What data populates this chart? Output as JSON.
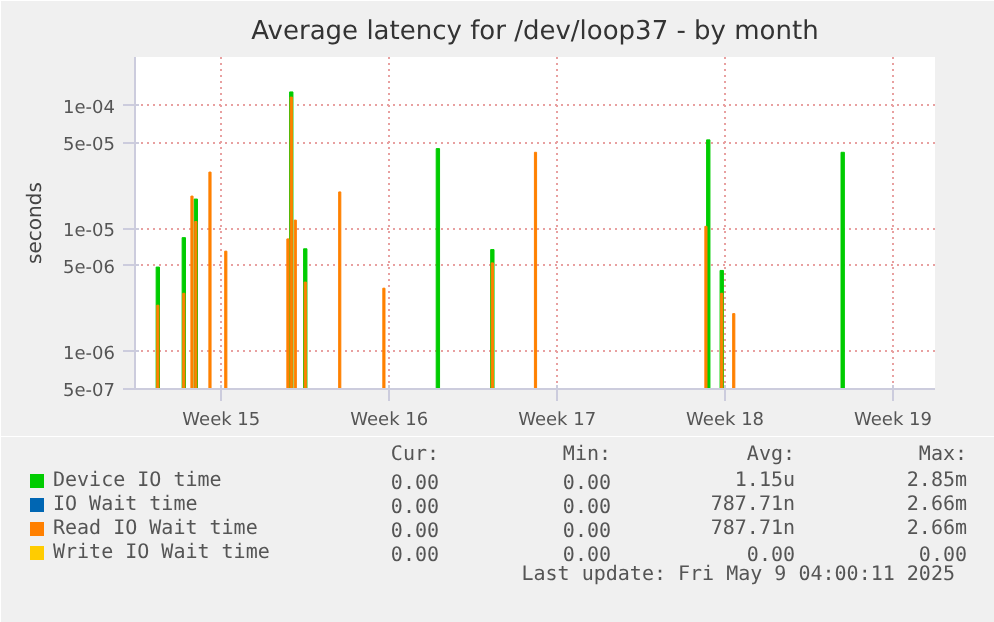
{
  "chart_data": {
    "type": "bar",
    "title": "Average latency for /dev/loop37 - by month",
    "ylabel": "seconds",
    "x": [
      "2025-04-07T20:30",
      "2025-04-08T22:30",
      "2025-04-09T06:40",
      "2025-04-09T10:30",
      "2025-04-10T00:40",
      "2025-04-10T16:30",
      "2025-04-13T06:40",
      "2025-04-13T10:00",
      "2025-04-13T14:00",
      "2025-04-14T00:00",
      "2025-04-15T10:30",
      "2025-04-17T06:40",
      "2025-04-19T12:40",
      "2025-04-21T19:10",
      "2025-04-23T14:20",
      "2025-04-30T16:50",
      "2025-04-30T19:10",
      "2025-05-01T08:40",
      "2025-05-01T20:40",
      "2025-05-06T09:40"
    ],
    "series": [
      {
        "name": "Device IO time",
        "color": "#00cc00",
        "values": [
          4.9e-06,
          8.5e-06,
          null,
          1.75e-05,
          null,
          null,
          null,
          0.00013,
          null,
          6.9e-06,
          null,
          null,
          4.5e-05,
          6.8e-06,
          null,
          null,
          5.3e-05,
          4.6e-06,
          null,
          4.2e-05
        ]
      },
      {
        "name": "IO Wait time",
        "color": "#0066b3",
        "values": [
          null,
          null,
          null,
          null,
          null,
          null,
          null,
          null,
          null,
          null,
          null,
          null,
          null,
          null,
          null,
          null,
          null,
          null,
          null,
          null
        ]
      },
      {
        "name": "Read IO Wait time",
        "color": "#ff8000",
        "values": [
          2.4e-06,
          3e-06,
          1.85e-05,
          1.15e-05,
          2.9e-05,
          6.6e-06,
          8.3e-06,
          0.000118,
          1.18e-05,
          3.7e-06,
          2e-05,
          3.3e-06,
          null,
          5.3e-06,
          4.2e-05,
          1.05e-05,
          null,
          3e-06,
          2.05e-06,
          null
        ]
      },
      {
        "name": "Write IO Wait time",
        "color": "#ffcc00",
        "values": [
          null,
          null,
          null,
          null,
          null,
          null,
          null,
          null,
          null,
          null,
          null,
          null,
          null,
          null,
          null,
          null,
          null,
          null,
          null,
          null
        ]
      }
    ],
    "log": "y",
    "xlim": [
      "2025-04-06T21:40",
      "2025-05-10T06:00"
    ],
    "xticks": [
      {
        "value": "2025-04-10T12:00",
        "label": "Week 15"
      },
      {
        "value": "2025-04-17T12:00",
        "label": "Week 16"
      },
      {
        "value": "2025-04-24T12:00",
        "label": "Week 17"
      },
      {
        "value": "2025-05-01T12:00",
        "label": "Week 18"
      },
      {
        "value": "2025-05-08T12:00",
        "label": "Week 19"
      }
    ],
    "ylim": [
      5e-07,
      0.00025
    ],
    "yticks": [
      {
        "value": 5e-07,
        "label": "5e-07"
      },
      {
        "value": 1e-06,
        "label": "1e-06"
      },
      {
        "value": 5e-06,
        "label": "5e-06"
      },
      {
        "value": 1e-05,
        "label": "1e-05"
      },
      {
        "value": 5e-05,
        "label": "5e-05"
      },
      {
        "value": 0.0001,
        "label": "1e-04"
      }
    ],
    "grid": true,
    "legend": "bottom",
    "annotations": [
      "Cur:",
      "Min:",
      "Avg:",
      "Max:",
      "0.00",
      "0.00",
      "1.15u",
      "2.85m",
      "0.00",
      "0.00",
      "787.71n",
      "2.66m",
      "0.00",
      "0.00",
      "787.71n",
      "2.66m",
      "0.00",
      "0.00",
      "0.00",
      "0.00",
      "Last update: Fri May  9 04:00:11 2025"
    ]
  }
}
